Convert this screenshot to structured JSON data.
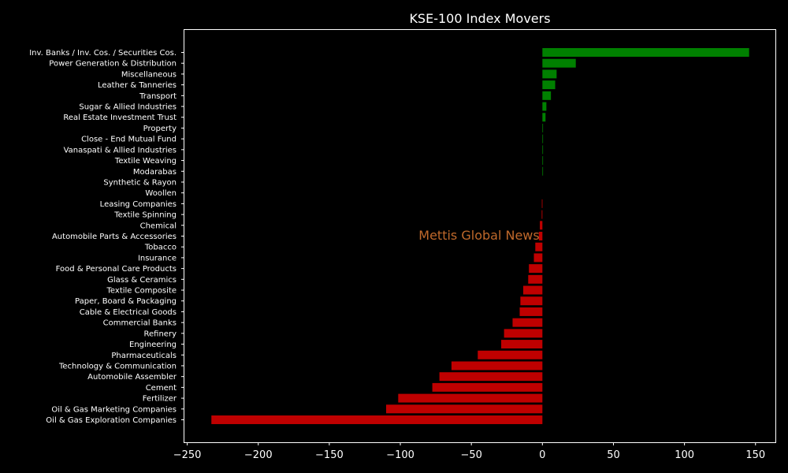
{
  "colors": {
    "background": "#000000",
    "axes": "#ffffff",
    "text": "#ffffff",
    "positive": "#008000",
    "negative": "#bf0000",
    "watermark": "#c0692b"
  },
  "watermark": "Mettis Global News",
  "chart_data": {
    "type": "bar",
    "orientation": "horizontal",
    "title": "KSE-100 Index Movers",
    "xlabel": "",
    "ylabel": "",
    "xlim": [
      -252,
      164
    ],
    "xticks": [
      -250,
      -200,
      -150,
      -100,
      -50,
      0,
      50,
      100,
      150
    ],
    "xtick_labels": [
      "−250",
      "−200",
      "−150",
      "−100",
      "−50",
      "0",
      "50",
      "100",
      "150"
    ],
    "grid": false,
    "categories": [
      "Inv. Banks / Inv. Cos. / Securities Cos.",
      "Power Generation & Distribution",
      "Miscellaneous",
      "Leather & Tanneries",
      "Transport",
      "Sugar & Allied Industries",
      "Real Estate Investment Trust",
      "Property",
      "Close - End Mutual Fund",
      "Vanaspati & Allied Industries",
      "Textile Weaving",
      "Modarabas",
      "Synthetic & Rayon",
      "Woollen",
      "Leasing Companies",
      "Textile Spinning",
      "Chemical",
      "Automobile Parts & Accessories",
      "Tobacco",
      "Insurance",
      "Food & Personal Care Products",
      "Glass & Ceramics",
      "Textile Composite",
      "Paper, Board & Packaging",
      "Cable & Electrical Goods",
      "Commercial Banks",
      "Refinery",
      "Engineering",
      "Pharmaceuticals",
      "Technology & Communication",
      "Automobile Assembler",
      "Cement",
      "Fertilizer",
      "Oil & Gas Marketing Companies",
      "Oil & Gas Exploration Companies"
    ],
    "values": [
      145.5,
      23.5,
      10.0,
      9.0,
      6.0,
      2.8,
      2.2,
      0.4,
      0.3,
      0.3,
      0.3,
      0.2,
      0.0,
      0.0,
      -0.4,
      -0.5,
      -1.8,
      -2.5,
      -5.0,
      -6.0,
      -9.5,
      -10.0,
      -13.5,
      -15.5,
      -16.0,
      -21.0,
      -27.0,
      -29.0,
      -45.5,
      -64.0,
      -72.5,
      -77.5,
      -101.5,
      -110.0,
      -233.0
    ]
  }
}
